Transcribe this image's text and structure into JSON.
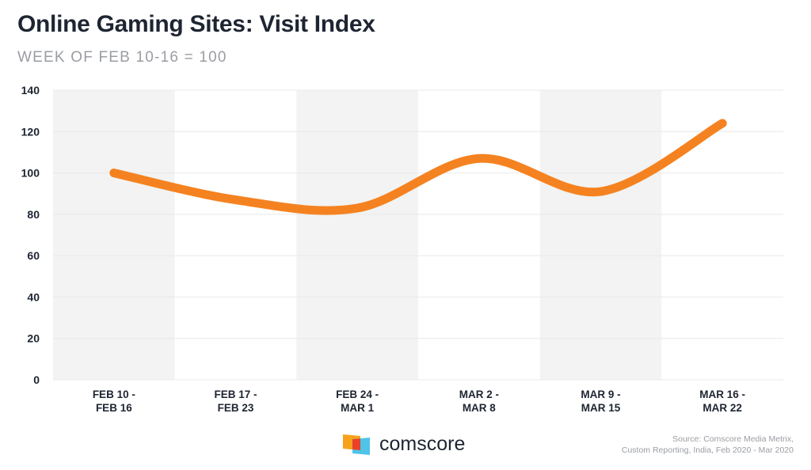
{
  "title": "Online Gaming Sites: Visit Index",
  "subtitle": "WEEK OF FEB 10-16 = 100",
  "source": [
    "Source: Comscore Media Metrix,",
    "Custom Reporting, India, Feb 2020 - Mar 2020"
  ],
  "logo_text": "comscore",
  "colors": {
    "line": "#f58220",
    "band": "#f2f3f2",
    "text": "#1e2532"
  },
  "chart_data": {
    "type": "line",
    "categories": [
      [
        "FEB 10 -",
        "FEB 16"
      ],
      [
        "FEB 17 -",
        "FEB 23"
      ],
      [
        "FEB 24 -",
        "MAR 1"
      ],
      [
        "MAR 2 -",
        "MAR 8"
      ],
      [
        "MAR 9 -",
        "MAR 15"
      ],
      [
        "MAR 16 -",
        "MAR 22"
      ]
    ],
    "values": [
      100,
      87,
      83,
      107,
      91,
      124
    ],
    "ylim": [
      0,
      140
    ],
    "yticks": [
      0,
      20,
      40,
      60,
      80,
      100,
      120,
      140
    ],
    "grid": true,
    "alternating_bands": true,
    "smooth": true
  }
}
